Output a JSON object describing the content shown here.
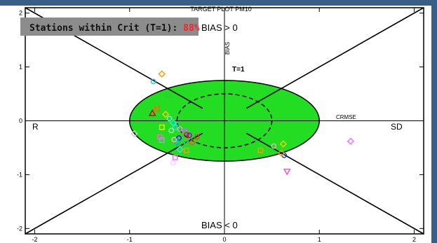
{
  "chart_data": {
    "type": "scatter",
    "title": "TARGET PLOT    PM10",
    "xlim": [
      -2.1,
      2.1
    ],
    "ylim": [
      -2.1,
      2.1
    ],
    "xticks": [
      -2,
      -1,
      0,
      1,
      2
    ],
    "yticks": [
      -2,
      -1,
      0,
      1,
      2
    ],
    "xtick_labels": [
      "-2",
      "-1",
      "0",
      "1",
      "2"
    ],
    "ytick_labels": [
      "-2",
      "-1",
      "0",
      "1",
      "2"
    ],
    "criterion_ellipse": {
      "rx": 1.0,
      "ry": 0.75,
      "color": "#22dd22"
    },
    "inner_ellipse_dashed": {
      "rx": 0.5,
      "ry": 0.5
    },
    "annotations": {
      "bias_top": "BIAS > 0",
      "bias_bottom": "BIAS < 0",
      "bias_axis": "BIAS",
      "t_label": "T=1",
      "crmse": "CRMSE",
      "left": "R",
      "right": "SD"
    },
    "stat_box": {
      "label": "Stations within Crit (T=1): ",
      "value": "88%",
      "value_color": "#ff2020",
      "bg": "#8c8c8c"
    },
    "points": [
      {
        "x": -0.66,
        "y": 0.87,
        "shape": "diamond",
        "color": "#ff9900"
      },
      {
        "x": -0.75,
        "y": 0.73,
        "shape": "circle",
        "color": "#00ccff"
      },
      {
        "x": -0.59,
        "y": 0.48,
        "shape": "triangle",
        "color": "#33cc33"
      },
      {
        "x": -0.71,
        "y": 0.22,
        "shape": "square",
        "color": "#ff6600"
      },
      {
        "x": -0.76,
        "y": 0.14,
        "shape": "triangle",
        "color": "#cc0000"
      },
      {
        "x": -0.62,
        "y": 0.12,
        "shape": "diamond",
        "color": "#ffcc00"
      },
      {
        "x": -0.58,
        "y": 0.04,
        "shape": "circle",
        "color": "#66ffcc"
      },
      {
        "x": -0.54,
        "y": -0.04,
        "shape": "diamond",
        "color": "#00ffff"
      },
      {
        "x": -0.52,
        "y": -0.12,
        "shape": "square",
        "color": "#33ddee"
      },
      {
        "x": -0.47,
        "y": -0.15,
        "shape": "circle",
        "color": "#ff99cc"
      },
      {
        "x": -0.42,
        "y": -0.2,
        "shape": "square",
        "color": "#cc66ff"
      },
      {
        "x": -0.4,
        "y": -0.26,
        "shape": "circle",
        "color": "#ff0000"
      },
      {
        "x": -0.37,
        "y": -0.27,
        "shape": "circle",
        "color": "#9900cc"
      },
      {
        "x": -0.48,
        "y": -0.32,
        "shape": "circle",
        "color": "#0000ff"
      },
      {
        "x": -0.5,
        "y": -0.4,
        "shape": "diamond",
        "color": "#00aaff"
      },
      {
        "x": -0.45,
        "y": -0.43,
        "shape": "square",
        "color": "#33cc33"
      },
      {
        "x": -0.41,
        "y": -0.38,
        "shape": "diamond",
        "color": "#33cc66"
      },
      {
        "x": -0.53,
        "y": -0.35,
        "shape": "circle",
        "color": "#ffaacc"
      },
      {
        "x": -0.68,
        "y": -0.3,
        "shape": "square",
        "color": "#ff66cc"
      },
      {
        "x": -0.66,
        "y": -0.36,
        "shape": "square",
        "color": "#cc88ff"
      },
      {
        "x": -0.95,
        "y": -0.24,
        "shape": "diamond",
        "color": "#cccccc"
      },
      {
        "x": -0.66,
        "y": -0.12,
        "shape": "square",
        "color": "#ffee00"
      },
      {
        "x": -0.56,
        "y": -0.18,
        "shape": "circle",
        "color": "#aaffaa"
      },
      {
        "x": -0.34,
        "y": -0.4,
        "shape": "diamond",
        "color": "#ff4444"
      },
      {
        "x": -0.29,
        "y": -0.3,
        "shape": "circle",
        "color": "#ff3333"
      },
      {
        "x": -0.47,
        "y": -0.53,
        "shape": "diamond",
        "color": "#66ccff"
      },
      {
        "x": -0.4,
        "y": -0.55,
        "shape": "square",
        "color": "#ff9900"
      },
      {
        "x": -0.52,
        "y": -0.68,
        "shape": "square",
        "color": "#ff66ff"
      },
      {
        "x": -0.54,
        "y": -0.78,
        "shape": "circle",
        "color": "#ffccff"
      },
      {
        "x": 0.38,
        "y": -0.55,
        "shape": "square",
        "color": "#ff9900"
      },
      {
        "x": 0.52,
        "y": -0.47,
        "shape": "circle",
        "color": "#ffaacc"
      },
      {
        "x": 0.62,
        "y": -0.43,
        "shape": "diamond",
        "color": "#ffcc00"
      },
      {
        "x": 0.63,
        "y": -0.64,
        "shape": "circle",
        "color": "#0044cc"
      },
      {
        "x": 0.6,
        "y": -0.6,
        "shape": "diamond",
        "color": "#ff9900"
      },
      {
        "x": 0.66,
        "y": -0.94,
        "shape": "triangle-down",
        "color": "#ff44cc"
      },
      {
        "x": 1.33,
        "y": -0.38,
        "shape": "diamond",
        "color": "#ff66ff"
      }
    ]
  }
}
